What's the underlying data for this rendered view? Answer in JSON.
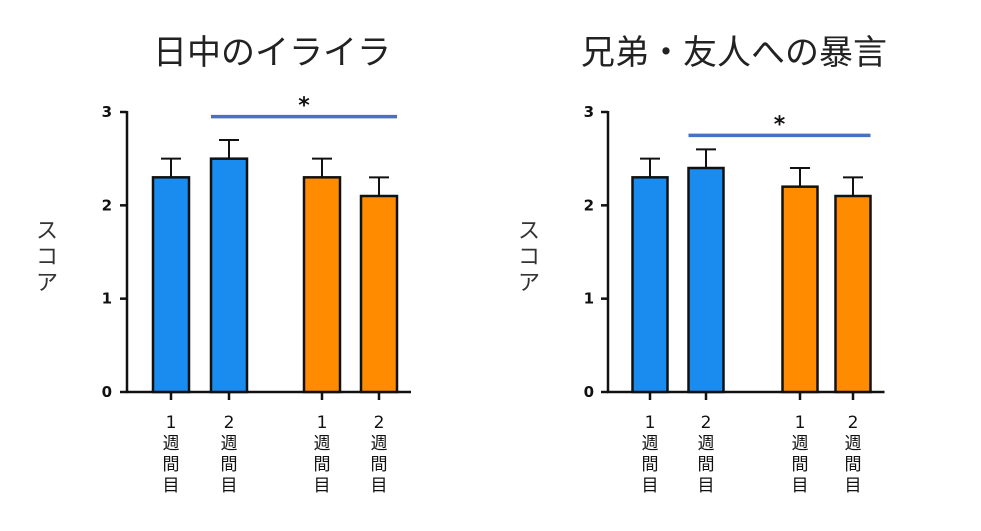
{
  "chart_data": [
    {
      "type": "bar",
      "title": "日中のイライラ",
      "ylabel": "スコア",
      "ylim": [
        0,
        3
      ],
      "yticks": [
        0,
        1,
        2,
        3
      ],
      "categories": [
        "1 週間目",
        "2 週間目",
        "1 週間目",
        "2 週間目"
      ],
      "category_lines": [
        [
          "1",
          "週",
          "間",
          "目"
        ],
        [
          "2",
          "週",
          "間",
          "目"
        ],
        [
          "1",
          "週",
          "間",
          "目"
        ],
        [
          "2",
          "週",
          "間",
          "目"
        ]
      ],
      "values": [
        2.3,
        2.5,
        2.3,
        2.1
      ],
      "errors": [
        0.2,
        0.2,
        0.2,
        0.2
      ],
      "colors": [
        "#1a8cf0",
        "#1a8cf0",
        "#ff8c00",
        "#ff8c00"
      ],
      "significance": {
        "from": 1,
        "to": 3,
        "label": "*",
        "level": 2.95,
        "color": "#4472c4"
      },
      "grid": false
    },
    {
      "type": "bar",
      "title": "兄弟・友人への暴言",
      "ylabel": "スコア",
      "ylim": [
        0,
        3
      ],
      "yticks": [
        0,
        1,
        2,
        3
      ],
      "categories": [
        "1 週間目",
        "2 週間目",
        "1 週間目",
        "2 週間目"
      ],
      "category_lines": [
        [
          "1",
          "週",
          "間",
          "目"
        ],
        [
          "2",
          "週",
          "間",
          "目"
        ],
        [
          "1",
          "週",
          "間",
          "目"
        ],
        [
          "2",
          "週",
          "間",
          "目"
        ]
      ],
      "values": [
        2.3,
        2.4,
        2.2,
        2.1
      ],
      "errors": [
        0.2,
        0.2,
        0.2,
        0.2
      ],
      "colors": [
        "#1a8cf0",
        "#1a8cf0",
        "#ff8c00",
        "#ff8c00"
      ],
      "significance": {
        "from": 1,
        "to": 3,
        "label": "*",
        "level": 2.75,
        "color": "#4472c4"
      },
      "grid": false
    }
  ]
}
